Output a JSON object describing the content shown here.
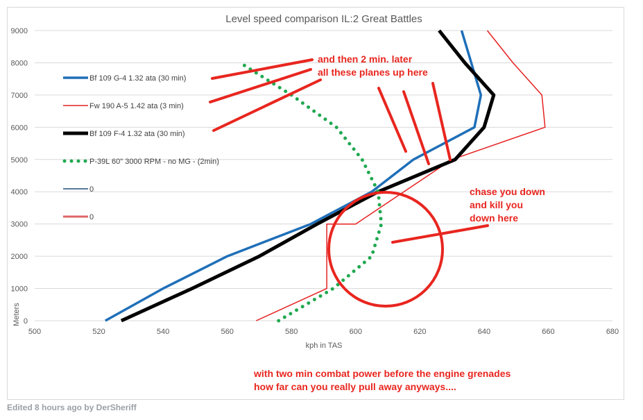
{
  "chart_data": {
    "type": "line",
    "title": "Level speed comparison IL:2 Great Battles",
    "xlabel": "kph in TAS",
    "ylabel": "Meters",
    "xlim": [
      500,
      680
    ],
    "ylim": [
      0,
      9000
    ],
    "xticks": [
      500,
      520,
      540,
      560,
      580,
      600,
      620,
      640,
      660,
      680
    ],
    "yticks": [
      0,
      1000,
      2000,
      3000,
      4000,
      5000,
      6000,
      7000,
      8000,
      9000
    ],
    "grid": "horizontal",
    "legend_position": "left",
    "series": [
      {
        "name": "Bf 109 G-4 1.32 ata (30 min)",
        "color": "#1f6fb8",
        "style": "solid",
        "width": 3.5,
        "points": [
          [
            522,
            0
          ],
          [
            540,
            1000
          ],
          [
            560,
            2000
          ],
          [
            586,
            3000
          ],
          [
            605,
            4000
          ],
          [
            618,
            5000
          ],
          [
            637,
            6000
          ],
          [
            639,
            7000
          ],
          [
            636,
            8000
          ],
          [
            633,
            9000
          ]
        ]
      },
      {
        "name": "Fw 190 A-5 1.42 ata (3 min)",
        "color": "#e62020",
        "style": "solid",
        "width": 1.5,
        "points": [
          [
            569,
            0
          ],
          [
            591,
            1000
          ],
          [
            591,
            3000
          ],
          [
            600,
            3000
          ],
          [
            630,
            5000
          ],
          [
            659,
            6000
          ],
          [
            658,
            7000
          ],
          [
            649,
            8000
          ],
          [
            641,
            9000
          ]
        ]
      },
      {
        "name": "Bf 109 F-4 1.32 ata (30 min)",
        "color": "#000000",
        "style": "solid",
        "width": 5,
        "points": [
          [
            527,
            0
          ],
          [
            549,
            1000
          ],
          [
            570,
            2000
          ],
          [
            588,
            3000
          ],
          [
            607,
            4000
          ],
          [
            631,
            5000
          ],
          [
            640,
            6000
          ],
          [
            643,
            7000
          ],
          [
            634,
            8000
          ],
          [
            626,
            9000
          ]
        ]
      },
      {
        "name": "P-39L 60\" 3000 RPM - no MG - (2min)",
        "color": "#1fa84f",
        "style": "dotted",
        "width": 4,
        "points": [
          [
            576,
            0
          ],
          [
            593,
            1000
          ],
          [
            605,
            2000
          ],
          [
            608,
            3000
          ],
          [
            607,
            4000
          ],
          [
            602,
            5000
          ],
          [
            594,
            6000
          ],
          [
            580,
            7000
          ],
          [
            564,
            8000
          ]
        ]
      },
      {
        "name": "0",
        "color": "#1f4e79",
        "style": "solid",
        "width": 1.5,
        "points": []
      },
      {
        "name": "0",
        "color": "#e06666",
        "style": "solid",
        "width": 3,
        "points": []
      }
    ]
  },
  "annotations": {
    "top": [
      "and then 2 min. later",
      "all these planes up here"
    ],
    "middle": [
      "chase you down",
      "and kill you",
      "down here"
    ],
    "bottom": [
      "with two min combat power before the engine grenades",
      "how far can you really pull away anyways...."
    ]
  },
  "annotation_color": "#e8261f",
  "footer": "Edited 8 hours ago by DerSheriff"
}
